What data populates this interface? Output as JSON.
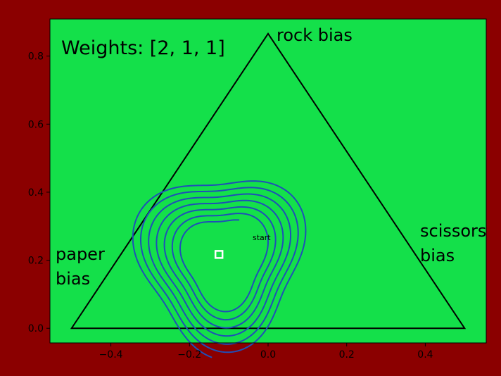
{
  "chart_data": {
    "type": "line",
    "title": "Weights: [2, 1, 1]",
    "xlim": [
      -0.555,
      0.555
    ],
    "ylim": [
      -0.043,
      0.909
    ],
    "xticks": [
      -0.4,
      -0.2,
      0.0,
      0.2,
      0.4
    ],
    "xtick_labels": [
      "−0.4",
      "−0.2",
      "0.0",
      "0.2",
      "0.4"
    ],
    "yticks": [
      0.0,
      0.2,
      0.4,
      0.6,
      0.8
    ],
    "ytick_labels": [
      "0.0",
      "0.2",
      "0.4",
      "0.6",
      "0.8"
    ],
    "grid": false,
    "triangle": [
      [
        -0.5,
        0.0
      ],
      [
        0.5,
        0.0
      ],
      [
        0.0,
        0.866
      ]
    ],
    "vertex_labels": {
      "rock": "rock bias",
      "scissors_line1": "scissors",
      "scissors_line2": "bias",
      "paper_line1": "paper",
      "paper_line2": "bias"
    },
    "start_label": "start",
    "start_point": [
      -0.055,
      0.25
    ],
    "equilibrium_marker": [
      -0.125,
      0.217
    ],
    "trajectory": {
      "center": [
        -0.115,
        0.205
      ],
      "start_angle_deg": 65,
      "turns": 6.55,
      "start_radius": [
        0.095,
        0.125
      ],
      "radius_growth_per_turn": [
        0.0185,
        0.021
      ],
      "angle_offset_deg": 35
    },
    "colors": {
      "figure_background": "#8b0000",
      "plot_background": "#14e04a",
      "triangle": "#000000",
      "trajectory": "#1f4fb8",
      "marker": "#ffffff"
    }
  }
}
